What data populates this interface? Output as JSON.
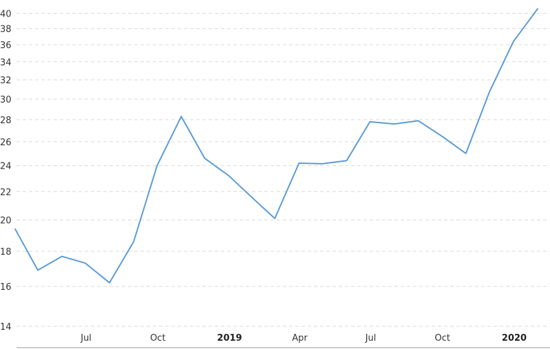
{
  "chart_data": {
    "type": "line",
    "y_scale": "log",
    "ylim": [
      14,
      40.5
    ],
    "y_ticks": [
      14,
      16,
      18,
      20,
      22,
      24,
      26,
      28,
      30,
      32,
      34,
      36,
      38,
      40
    ],
    "x_ticks": [
      {
        "label": "Jul",
        "date": "2018-07",
        "bold": false
      },
      {
        "label": "Oct",
        "date": "2018-10",
        "bold": false
      },
      {
        "label": "2019",
        "date": "2019-01",
        "bold": true
      },
      {
        "label": "Apr",
        "date": "2019-04",
        "bold": false
      },
      {
        "label": "Jul",
        "date": "2019-07",
        "bold": false
      },
      {
        "label": "Oct",
        "date": "2019-10",
        "bold": false
      },
      {
        "label": "2020",
        "date": "2020-01",
        "bold": true
      }
    ],
    "grid": true,
    "series": [
      {
        "color": "#5b9bd5",
        "points": [
          {
            "date": "2018-04-01",
            "value": 19.4
          },
          {
            "date": "2018-04-30",
            "value": 16.9
          },
          {
            "date": "2018-05-31",
            "value": 17.7
          },
          {
            "date": "2018-06-30",
            "value": 17.3
          },
          {
            "date": "2018-07-31",
            "value": 16.2
          },
          {
            "date": "2018-08-31",
            "value": 18.6
          },
          {
            "date": "2018-09-30",
            "value": 24.0
          },
          {
            "date": "2018-10-31",
            "value": 28.3
          },
          {
            "date": "2018-11-30",
            "value": 24.6
          },
          {
            "date": "2018-12-31",
            "value": 23.2
          },
          {
            "date": "2019-01-31",
            "value": 21.5
          },
          {
            "date": "2019-02-28",
            "value": 20.1
          },
          {
            "date": "2019-03-31",
            "value": 24.2
          },
          {
            "date": "2019-04-30",
            "value": 24.15
          },
          {
            "date": "2019-05-31",
            "value": 24.4
          },
          {
            "date": "2019-06-30",
            "value": 27.8
          },
          {
            "date": "2019-07-31",
            "value": 27.6
          },
          {
            "date": "2019-08-31",
            "value": 27.9
          },
          {
            "date": "2019-09-30",
            "value": 26.5
          },
          {
            "date": "2019-10-31",
            "value": 25.0
          },
          {
            "date": "2019-11-30",
            "value": 30.7
          },
          {
            "date": "2019-12-31",
            "value": 36.4
          },
          {
            "date": "2020-01-31",
            "value": 40.6
          }
        ]
      }
    ]
  }
}
